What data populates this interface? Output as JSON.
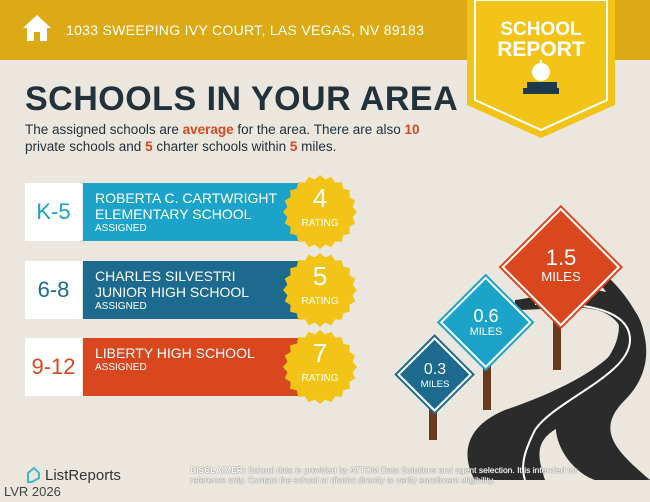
{
  "header": {
    "address": "1033 SWEEPING IVY COURT, LAS VEGAS, NV 89183",
    "badge_line1": "SCHOOL",
    "badge_line2": "REPORT"
  },
  "title": "SCHOOLS IN YOUR AREA",
  "intro": {
    "p1": "The assigned schools are ",
    "quality": "average",
    "p2": " for the area. There are also ",
    "private_count": "10",
    "p3": " private schools and ",
    "charter_count": "5",
    "p4": " charter schools within ",
    "miles": "5",
    "p5": " miles."
  },
  "schools": [
    {
      "grade": "K-5",
      "line1": "ROBERTA C. CARTWRIGHT",
      "line2": "ELEMENTARY SCHOOL",
      "status": "ASSIGNED",
      "rating": "4",
      "rating_label": "RATING",
      "color": "#1ba3c9"
    },
    {
      "grade": "6-8",
      "line1": "CHARLES SILVESTRI",
      "line2": "JUNIOR HIGH SCHOOL",
      "status": "ASSIGNED",
      "rating": "5",
      "rating_label": "RATING",
      "color": "#1c6a8e"
    },
    {
      "grade": "9-12",
      "line1": "LIBERTY HIGH SCHOOL",
      "line2": "",
      "status": "ASSIGNED",
      "rating": "7",
      "rating_label": "RATING",
      "color": "#d9471f"
    }
  ],
  "signs": [
    {
      "value": "0.3",
      "unit": "MILES",
      "color": "#1c6a8e"
    },
    {
      "value": "0.6",
      "unit": "MILES",
      "color": "#1ba3c9"
    },
    {
      "value": "1.5",
      "unit": "MILES",
      "color": "#d9471f"
    }
  ],
  "footer": {
    "logo": "ListReports",
    "mls": "LVR 2026",
    "disclaimer_label": "DISCLAIMER:",
    "disclaimer": "School data is provided by ATTOM Data Solutions and agent selection. It is intended for reference only. Contact the school or district directly to verify enrollment eligibility."
  }
}
